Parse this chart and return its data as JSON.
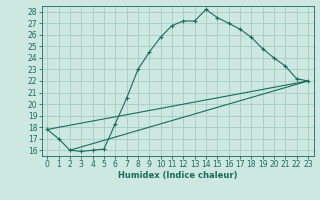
{
  "title": "",
  "xlabel": "Humidex (Indice chaleur)",
  "ylabel": "",
  "background_color": "#cce8e0",
  "grid_color": "#aaccc4",
  "line_color": "#1a6b5a",
  "xlim": [
    -0.5,
    23.5
  ],
  "ylim": [
    15.5,
    28.5
  ],
  "yticks": [
    16,
    17,
    18,
    19,
    20,
    21,
    22,
    23,
    24,
    25,
    26,
    27,
    28
  ],
  "xticks": [
    0,
    1,
    2,
    3,
    4,
    5,
    6,
    7,
    8,
    9,
    10,
    11,
    12,
    13,
    14,
    15,
    16,
    17,
    18,
    19,
    20,
    21,
    22,
    23
  ],
  "curve1_x": [
    0,
    1,
    2,
    3,
    4,
    5,
    6,
    7,
    8,
    9,
    10,
    11,
    12,
    13,
    14,
    15,
    16,
    17,
    18,
    19,
    20,
    21,
    22,
    23
  ],
  "curve1_y": [
    17.8,
    17.0,
    16.0,
    15.9,
    16.0,
    16.1,
    18.3,
    20.5,
    23.0,
    24.5,
    25.8,
    26.8,
    27.2,
    27.2,
    28.2,
    27.5,
    27.0,
    26.5,
    25.8,
    24.8,
    24.0,
    23.3,
    22.2,
    22.0
  ],
  "curve2_x": [
    0,
    23
  ],
  "curve2_y": [
    17.8,
    22.0
  ],
  "curve3_x": [
    2,
    23
  ],
  "curve3_y": [
    16.0,
    22.0
  ],
  "tick_fontsize": 5.5,
  "xlabel_fontsize": 6.0
}
